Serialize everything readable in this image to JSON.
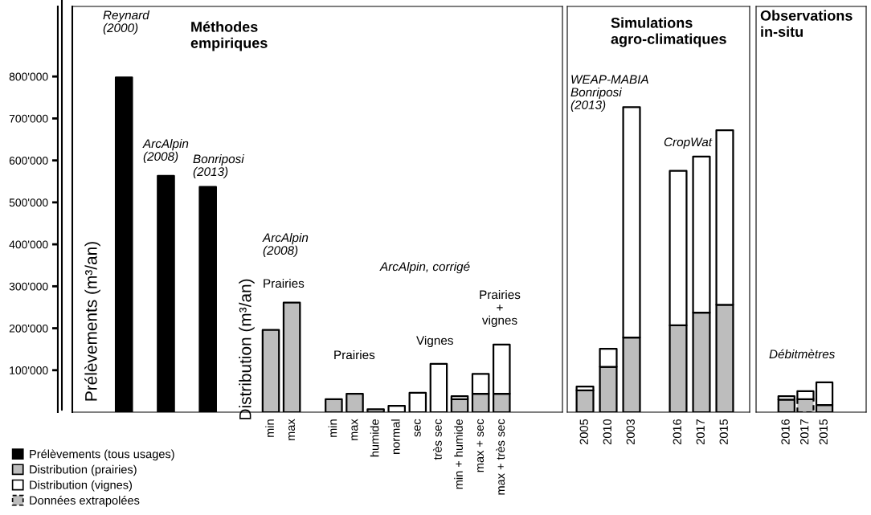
{
  "chart_data": [
    {
      "type": "bar",
      "stacked": true,
      "title": "Méthodes\nempiriques",
      "ylabel": "Prélèvements (m³/an)",
      "categories": [
        null,
        null,
        null,
        null,
        null,
        null,
        null,
        "min",
        "max",
        null,
        "min",
        "max",
        "humide",
        "normal",
        "sec",
        "très sec",
        "min + humide",
        "max + sec",
        "max + très sec"
      ],
      "series": [
        {
          "name": "Prélèvements (tous usages)",
          "color": "#000000",
          "values": [
            798000,
            null,
            563000,
            null,
            537000,
            null,
            null,
            null,
            null,
            null,
            null,
            null,
            null,
            null,
            null,
            null,
            null,
            null,
            null
          ]
        },
        {
          "name": "Distribution (prairies)",
          "color": "#bdbdbd",
          "values": [
            null,
            null,
            null,
            null,
            null,
            null,
            null,
            196000,
            261000,
            null,
            31000,
            44000,
            7000,
            null,
            null,
            null,
            31000,
            44000,
            44000
          ]
        },
        {
          "name": "Distribution (vignes)",
          "color": "#ffffff",
          "values": [
            null,
            null,
            null,
            null,
            null,
            null,
            null,
            null,
            null,
            null,
            null,
            null,
            null,
            15000,
            46000,
            115000,
            7000,
            47000,
            117000
          ]
        }
      ],
      "ylim": [
        0,
        967000
      ],
      "yticks": [
        {
          "value": 100000,
          "label": "100'000"
        },
        {
          "value": 200000,
          "label": "200'000"
        },
        {
          "value": 300000,
          "label": "300'000"
        },
        {
          "value": 400000,
          "label": "400'000"
        },
        {
          "value": 500000,
          "label": "500'000"
        },
        {
          "value": 600000,
          "label": "600'000"
        },
        {
          "value": 700000,
          "label": "700'000"
        },
        {
          "value": 800000,
          "label": "800'000"
        }
      ],
      "annotations": [
        "Reynard\n(2000)",
        "ArcAlpin\n(2008)",
        "Bonriposi\n(2013)",
        "Distribution (m³/an)",
        "ArcAlpin\n(2008)",
        "Prairies",
        "ArcAlpin, corrigé",
        "Prairies",
        "Vignes",
        "Prairies\n+\nvignes"
      ],
      "legend": "bottom left",
      "grid": false
    },
    {
      "type": "bar",
      "stacked": true,
      "title": "Simulations\nagro-climatiques",
      "categories": [
        "2005",
        "2010",
        "2003",
        null,
        "2016",
        "2017",
        "2015"
      ],
      "series": [
        {
          "color": "#bdbdbd",
          "values": [
            52000,
            108000,
            178000,
            null,
            207000,
            237000,
            256000
          ]
        },
        {
          "color": "#ffffff",
          "values": [
            9000,
            43000,
            549000,
            null,
            368000,
            372000,
            416000
          ]
        }
      ],
      "ylim": [
        0,
        967000
      ],
      "tick_labels": "x",
      "annotations": [
        "WEAP-MABIA\nBonriposi\n(2013)",
        "CropWat"
      ],
      "grid": false
    },
    {
      "type": "bar",
      "stacked": true,
      "title": "Observations\nin-situ",
      "categories": [
        "2016",
        "2017",
        "2015"
      ],
      "series": [
        {
          "color": "#bdbdbd",
          "values": [
            30000,
            null,
            17000
          ]
        },
        {
          "name": "Données extrapolées",
          "color": "#bdbdbd",
          "line_style": "dashed",
          "values": [
            null,
            31000,
            null
          ]
        },
        {
          "color": "#ffffff",
          "values": [
            8000,
            19000,
            54000
          ]
        }
      ],
      "ylim": [
        0,
        967000
      ],
      "tick_labels": "x",
      "annotations": [
        "Débitmètres"
      ],
      "grid": false
    }
  ]
}
